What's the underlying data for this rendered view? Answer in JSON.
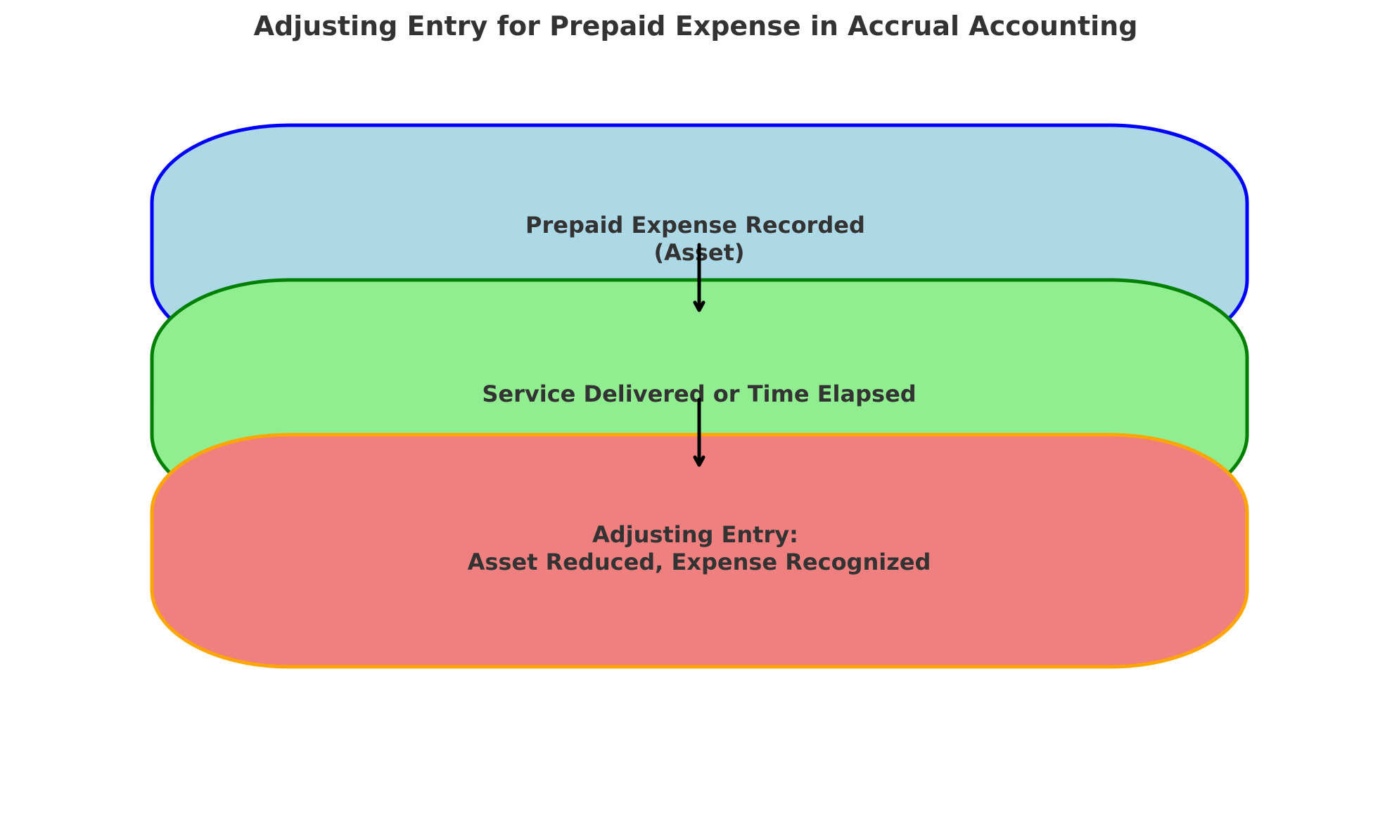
{
  "title": "Adjusting Entry for Prepaid Expense in Accrual Accounting",
  "nodes": [
    {
      "id": "prepaid-recorded",
      "lines": [
        "Prepaid Expense Recorded",
        "(Asset)"
      ],
      "fill": "#add8e6",
      "stroke": "#0000ff"
    },
    {
      "id": "service-delivered",
      "lines": [
        "Service Delivered or Time Elapsed"
      ],
      "fill": "#90ee90",
      "stroke": "#008000"
    },
    {
      "id": "adjusting-entry",
      "lines": [
        "Adjusting Entry:",
        "Asset Reduced, Expense Recognized"
      ],
      "fill": "#f08080",
      "stroke": "#ffa500"
    }
  ],
  "edges": [
    {
      "from": "prepaid-recorded",
      "to": "service-delivered"
    },
    {
      "from": "service-delivered",
      "to": "adjusting-entry"
    }
  ]
}
